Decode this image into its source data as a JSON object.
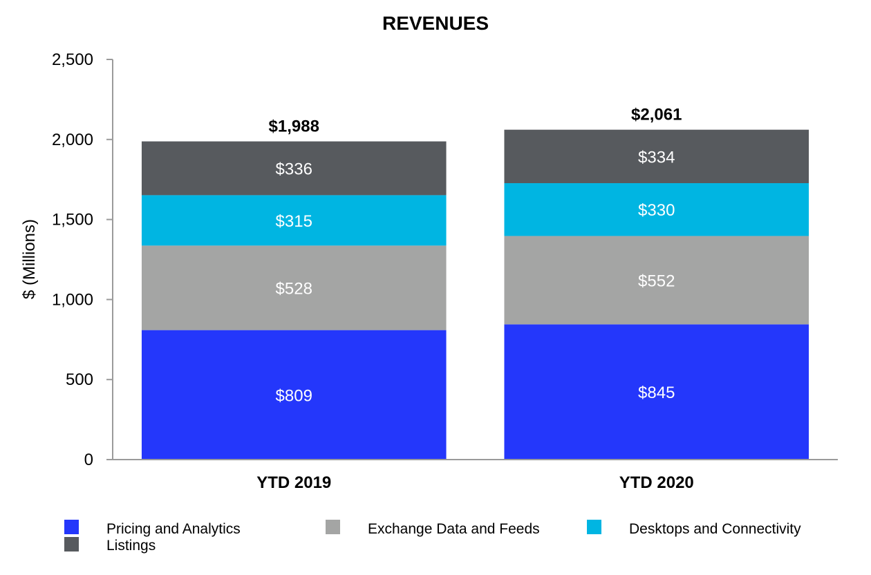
{
  "chart_data": {
    "type": "bar",
    "stacked": true,
    "title": "REVENUES",
    "xlabel": "",
    "ylabel": "$ (Millions)",
    "ylim": [
      0,
      2500
    ],
    "yticks": [
      0,
      500,
      1000,
      1500,
      2000,
      2500
    ],
    "ytick_labels": [
      "0",
      "500",
      "1,000",
      "1,500",
      "2,000",
      "2,500"
    ],
    "categories": [
      "YTD 2019",
      "YTD 2020"
    ],
    "series": [
      {
        "name": "Pricing and Analytics",
        "color": "#2437fb",
        "values": [
          809,
          845
        ],
        "labels": [
          "$809",
          "$845"
        ]
      },
      {
        "name": "Exchange Data and Feeds",
        "color": "#a4a5a4",
        "values": [
          528,
          552
        ],
        "labels": [
          "$528",
          "$552"
        ]
      },
      {
        "name": "Desktops and Connectivity",
        "color": "#00b5e2",
        "values": [
          315,
          330
        ],
        "labels": [
          "$315",
          "$330"
        ]
      },
      {
        "name": "Listings",
        "color": "#575a5e",
        "values": [
          336,
          334
        ],
        "labels": [
          "$336",
          "$334"
        ]
      }
    ],
    "totals": [
      1988,
      2061
    ],
    "total_labels": [
      "$1,988",
      "$2,061"
    ],
    "legend_position": "bottom"
  }
}
